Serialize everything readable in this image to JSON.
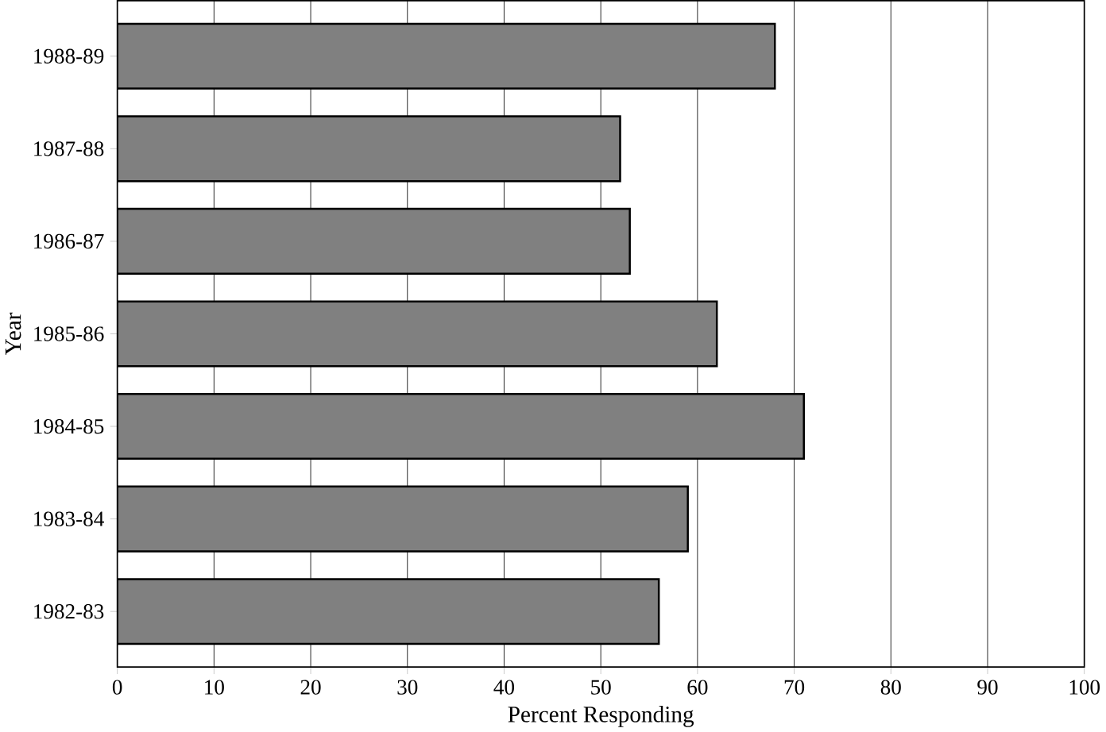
{
  "chart_data": {
    "type": "bar",
    "orientation": "horizontal",
    "xlabel": "Percent Responding",
    "ylabel": "Year",
    "categories": [
      "1988-89",
      "1987-88",
      "1986-87",
      "1985-86",
      "1984-85",
      "1983-84",
      "1982-83"
    ],
    "values": [
      68,
      52,
      53,
      62,
      71,
      59,
      56
    ],
    "color": "#808080",
    "xlim": [
      0,
      100
    ],
    "xticks": [
      0,
      10,
      20,
      30,
      40,
      50,
      60,
      70,
      80,
      90,
      100
    ],
    "grid": "x"
  }
}
